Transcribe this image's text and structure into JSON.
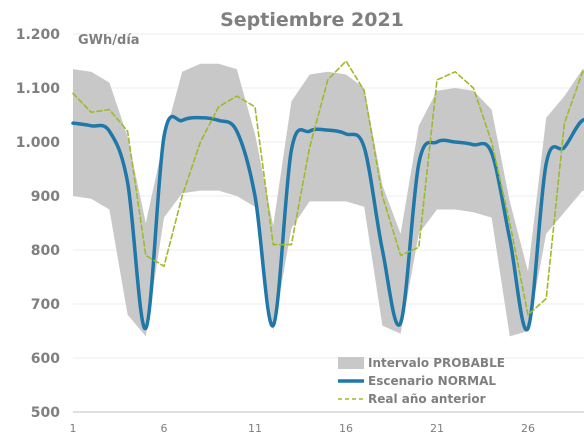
{
  "chart_data": {
    "type": "line",
    "title": "Septiembre 2021",
    "ylabel": "GWh/día",
    "xlabel": "",
    "ylim": [
      500,
      1200
    ],
    "yticks": [
      "500",
      "600",
      "700",
      "800",
      "900",
      "1.000",
      "1.100",
      "1.200"
    ],
    "ytick_values": [
      500,
      600,
      700,
      800,
      900,
      1000,
      1100,
      1200
    ],
    "xticks": [
      "1",
      "6",
      "11",
      "16",
      "21",
      "26"
    ],
    "xtick_values": [
      1,
      6,
      11,
      16,
      21,
      26
    ],
    "xlim": [
      1,
      30
    ],
    "grid": true,
    "legend_position": "bottom-right",
    "x": [
      1,
      2,
      3,
      4,
      5,
      6,
      7,
      8,
      9,
      10,
      11,
      12,
      13,
      14,
      15,
      16,
      17,
      18,
      19,
      20,
      21,
      22,
      23,
      24,
      25,
      26,
      27,
      28,
      29,
      30
    ],
    "band": {
      "name": "Intervalo PROBABLE",
      "color": "#c8c8c8",
      "upper": [
        1135,
        1130,
        1110,
        1010,
        850,
        1005,
        1130,
        1145,
        1145,
        1135,
        1015,
        845,
        1075,
        1125,
        1130,
        1125,
        1100,
        920,
        830,
        1030,
        1095,
        1100,
        1095,
        1060,
        890,
        760,
        1045,
        1085,
        1135,
        1130
      ],
      "lower": [
        900,
        895,
        875,
        680,
        640,
        860,
        905,
        910,
        910,
        900,
        880,
        650,
        840,
        890,
        890,
        890,
        880,
        660,
        645,
        830,
        875,
        875,
        870,
        860,
        640,
        650,
        830,
        870,
        910,
        905
      ]
    },
    "series": [
      {
        "name": "Escenario NORMAL",
        "color": "#1f78a8",
        "style": "solid",
        "values": [
          1035,
          1030,
          1020,
          925,
          655,
          1010,
          1040,
          1045,
          1040,
          1020,
          900,
          660,
          985,
          1020,
          1022,
          1015,
          990,
          800,
          665,
          960,
          1000,
          1000,
          995,
          980,
          820,
          655,
          960,
          990,
          1040,
          1035
        ]
      },
      {
        "name": "Real año anterior",
        "color": "#9bbb29",
        "style": "dashed",
        "values": [
          1090,
          1055,
          1060,
          1020,
          790,
          770,
          900,
          1000,
          1065,
          1085,
          1065,
          810,
          810,
          990,
          1115,
          1150,
          1095,
          900,
          790,
          805,
          1115,
          1130,
          1100,
          1000,
          850,
          680,
          710,
          1035,
          1130,
          1120
        ]
      }
    ]
  }
}
